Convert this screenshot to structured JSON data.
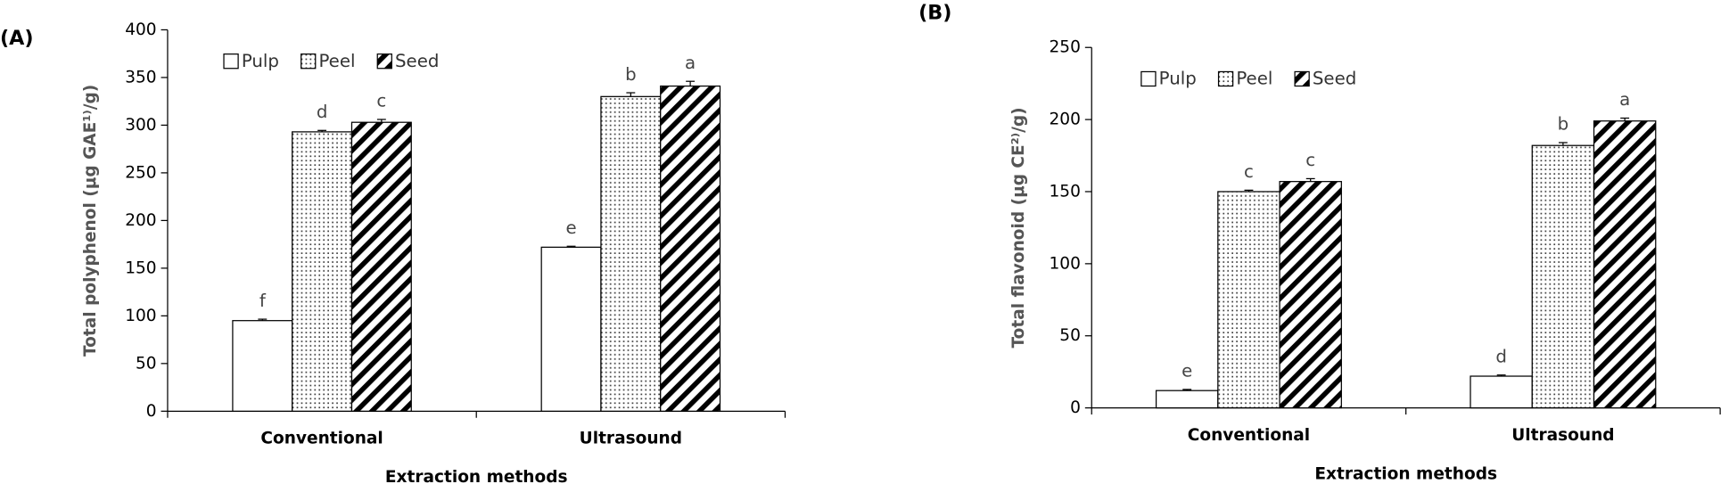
{
  "chart_data": [
    {
      "type": "bar",
      "panel_label": "(A)",
      "y_label": "Total polyphenol (μg GAE¹⁾/g)",
      "x_label": "Extraction methods",
      "categories": [
        "Conventional",
        "Ultrasound"
      ],
      "ylim": [
        0,
        400
      ],
      "yticks": [
        0,
        50,
        100,
        150,
        200,
        250,
        300,
        350,
        400
      ],
      "legend": "upper left",
      "series": [
        {
          "name": "Pulp",
          "pattern": "plain",
          "values": [
            95,
            172
          ],
          "errors": [
            1.5,
            1
          ],
          "letters": [
            "f",
            "e"
          ]
        },
        {
          "name": "Peel",
          "pattern": "dots",
          "values": [
            293,
            330
          ],
          "errors": [
            1.5,
            4
          ],
          "letters": [
            "d",
            "b"
          ]
        },
        {
          "name": "Seed",
          "pattern": "hatch",
          "values": [
            303,
            341
          ],
          "errors": [
            3,
            5
          ],
          "letters": [
            "c",
            "a"
          ]
        }
      ]
    },
    {
      "type": "bar",
      "panel_label": "(B)",
      "y_label": "Total flavonoid (μg CE²⁾/g)",
      "x_label": "Extraction methods",
      "categories": [
        "Conventional",
        "Ultrasound"
      ],
      "ylim": [
        0,
        250
      ],
      "yticks": [
        0,
        50,
        100,
        150,
        200,
        250
      ],
      "legend": "upper left",
      "series": [
        {
          "name": "Pulp",
          "pattern": "plain",
          "values": [
            12,
            22
          ],
          "errors": [
            0.8,
            0.8
          ],
          "letters": [
            "e",
            "d"
          ]
        },
        {
          "name": "Peel",
          "pattern": "dots",
          "values": [
            150,
            182
          ],
          "errors": [
            1,
            2
          ],
          "letters": [
            "c",
            "b"
          ]
        },
        {
          "name": "Seed",
          "pattern": "hatch",
          "values": [
            157,
            199
          ],
          "errors": [
            2,
            2
          ],
          "letters": [
            "c",
            "a"
          ]
        }
      ]
    }
  ]
}
